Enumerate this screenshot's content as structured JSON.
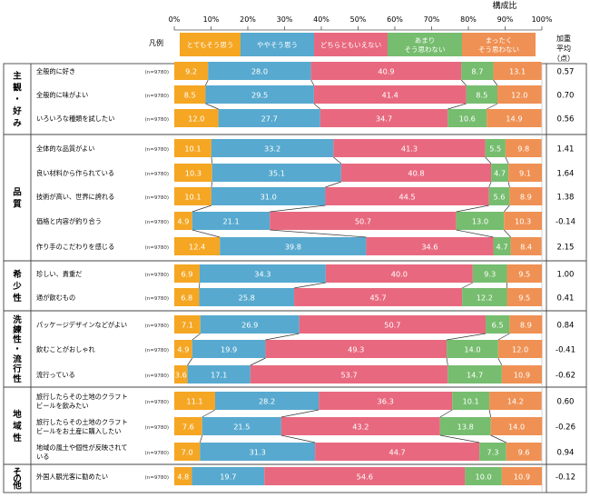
{
  "chart_data": {
    "type": "bar",
    "stacked": true,
    "orientation": "horizontal",
    "x_axis_label": "構成比",
    "x_ticks": [
      "0%",
      "10%",
      "20%",
      "30%",
      "40%",
      "50%",
      "60%",
      "70%",
      "80%",
      "90%",
      "100%"
    ],
    "xlim": [
      0,
      100
    ],
    "legend_label": "凡例",
    "legend_placement": "top",
    "series": [
      {
        "name": "とてもそう思う",
        "color": "#f5a623"
      },
      {
        "name": "ややそう思う",
        "color": "#57a9cf"
      },
      {
        "name": "どちらともいえない",
        "color": "#e8697f"
      },
      {
        "name_lines": [
          "あまり",
          "そう思わない"
        ],
        "color": "#76bd6f"
      },
      {
        "name_lines": [
          "まったく",
          "そう思わない"
        ],
        "color": "#ef9154"
      }
    ],
    "weighted_avg_header": [
      "加重",
      "平均",
      "（点）"
    ],
    "groups": [
      {
        "label": [
          "主",
          "観",
          "・",
          "好",
          "み"
        ],
        "rows": [
          {
            "label": [
              "全般的に好き"
            ],
            "n": "(n=9780)",
            "values": [
              9.2,
              28.0,
              40.9,
              8.7,
              13.1
            ],
            "avg": "0.57"
          },
          {
            "label": [
              "全般的に味がよい"
            ],
            "n": "(n=9780)",
            "values": [
              8.5,
              29.5,
              41.4,
              8.5,
              12.0
            ],
            "avg": "0.70"
          },
          {
            "label": [
              "いろいろな種類を試したい"
            ],
            "n": "(n=9780)",
            "values": [
              12.0,
              27.7,
              34.7,
              10.6,
              14.9
            ],
            "avg": "0.56"
          }
        ]
      },
      {
        "label": [
          "品",
          "質"
        ],
        "rows": [
          {
            "label": [
              "全体的な品質がよい"
            ],
            "n": "(n=9780)",
            "values": [
              10.1,
              33.2,
              41.3,
              5.5,
              9.8
            ],
            "avg": "1.41"
          },
          {
            "label": [
              "良い材料から作られている"
            ],
            "n": "(n=9780)",
            "values": [
              10.3,
              35.1,
              40.8,
              4.7,
              9.1
            ],
            "avg": "1.64"
          },
          {
            "label": [
              "技術が高い、世界に誇れる"
            ],
            "n": "(n=9780)",
            "values": [
              10.1,
              31.0,
              44.5,
              5.6,
              8.9
            ],
            "avg": "1.38"
          },
          {
            "label": [
              "価格と内容が釣り合う"
            ],
            "n": "(n=9780)",
            "values": [
              4.9,
              21.1,
              50.7,
              13.0,
              10.3
            ],
            "avg": "-0.14"
          },
          {
            "label": [
              "作り手のこだわりを感じる"
            ],
            "n": "(n=9780)",
            "values": [
              12.4,
              39.8,
              34.6,
              4.7,
              8.4
            ],
            "avg": "2.15"
          }
        ]
      },
      {
        "label": [
          "希",
          "少",
          "性"
        ],
        "rows": [
          {
            "label": [
              "珍しい、貴重だ"
            ],
            "n": "(n=9780)",
            "values": [
              6.9,
              34.3,
              40.0,
              9.3,
              9.5
            ],
            "avg": "1.00"
          },
          {
            "label": [
              "通が飲むもの"
            ],
            "n": "(n=9780)",
            "values": [
              6.8,
              25.8,
              45.7,
              12.2,
              9.5
            ],
            "avg": "0.41"
          }
        ]
      },
      {
        "label": [
          "洗",
          "練",
          "性",
          "・",
          "流",
          "行",
          "性"
        ],
        "rows": [
          {
            "label": [
              "パッケージデザインなどがよい"
            ],
            "n": "(n=9780)",
            "values": [
              7.1,
              26.9,
              50.7,
              6.5,
              8.9
            ],
            "avg": "0.84"
          },
          {
            "label": [
              "飲むことがおしゃれ"
            ],
            "n": "(n=9780)",
            "values": [
              4.9,
              19.9,
              49.3,
              14.0,
              12.0
            ],
            "avg": "-0.41"
          },
          {
            "label": [
              "流行っている"
            ],
            "n": "(n=9780)",
            "values": [
              3.6,
              17.1,
              53.7,
              14.7,
              10.9
            ],
            "avg": "-0.62"
          }
        ]
      },
      {
        "label": [
          "地",
          "域",
          "性"
        ],
        "rows": [
          {
            "label": [
              "旅行したらその土地のクラフト",
              "ビールを飲みたい"
            ],
            "n": "(n=9780)",
            "values": [
              11.1,
              28.2,
              36.3,
              10.1,
              14.2
            ],
            "avg": "0.60"
          },
          {
            "label": [
              "旅行したらその土地のクラフト",
              "ビールをお土産に購入したい"
            ],
            "n": "(n=9780)",
            "values": [
              7.6,
              21.5,
              43.2,
              13.8,
              14.0
            ],
            "avg": "-0.26"
          },
          {
            "label": [
              "地域の風土や個性が反映されて",
              "いる"
            ],
            "n": "(n=9780)",
            "values": [
              7.0,
              31.3,
              44.7,
              7.3,
              9.6
            ],
            "avg": "0.94"
          }
        ]
      },
      {
        "label": [
          "そ",
          "の",
          "他"
        ],
        "rows": [
          {
            "label": [
              "外国人観光客に勧めたい"
            ],
            "n": "(n=9780)",
            "values": [
              4.8,
              19.7,
              54.6,
              10.0,
              10.9
            ],
            "avg": "-0.12"
          }
        ]
      }
    ]
  }
}
